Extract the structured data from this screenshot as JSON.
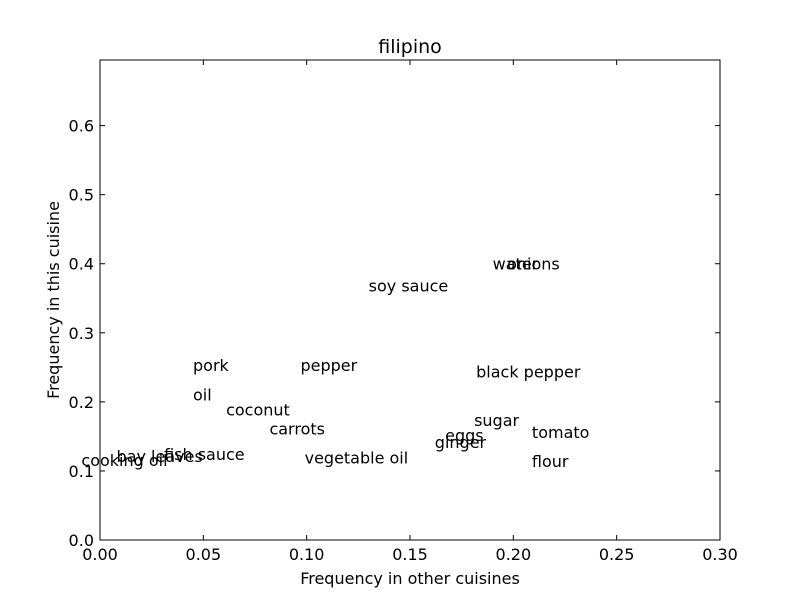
{
  "chart_data": {
    "type": "scatter",
    "title": "filipino",
    "xlabel": "Frequency in other cuisines",
    "ylabel": "Frequency in this cuisine",
    "xlim": [
      0.0,
      0.3
    ],
    "ylim": [
      0.0,
      0.695
    ],
    "xticks": [
      0.0,
      0.05,
      0.1,
      0.15,
      0.2,
      0.25,
      0.3
    ],
    "xtick_labels": [
      "0.00",
      "0.05",
      "0.10",
      "0.15",
      "0.20",
      "0.25",
      "0.30"
    ],
    "yticks": [
      0.0,
      0.1,
      0.2,
      0.3,
      0.4,
      0.5,
      0.6
    ],
    "ytick_labels": [
      "0.0",
      "0.1",
      "0.2",
      "0.3",
      "0.4",
      "0.5",
      "0.6"
    ],
    "grid": false,
    "points": [
      {
        "label": "onions",
        "x": 0.197,
        "y": 0.392
      },
      {
        "label": "water",
        "x": 0.19,
        "y": 0.392
      },
      {
        "label": "soy sauce",
        "x": 0.13,
        "y": 0.36
      },
      {
        "label": "pork",
        "x": 0.045,
        "y": 0.245
      },
      {
        "label": "pepper",
        "x": 0.097,
        "y": 0.245
      },
      {
        "label": "black pepper",
        "x": 0.182,
        "y": 0.235
      },
      {
        "label": "oil",
        "x": 0.045,
        "y": 0.202
      },
      {
        "label": "coconut",
        "x": 0.061,
        "y": 0.18
      },
      {
        "label": "carrots",
        "x": 0.082,
        "y": 0.153
      },
      {
        "label": "sugar",
        "x": 0.181,
        "y": 0.165
      },
      {
        "label": "tomato",
        "x": 0.209,
        "y": 0.148
      },
      {
        "label": "eggs",
        "x": 0.167,
        "y": 0.143
      },
      {
        "label": "ginger",
        "x": 0.162,
        "y": 0.133
      },
      {
        "label": "bay leaves",
        "x": 0.008,
        "y": 0.113
      },
      {
        "label": "fish sauce",
        "x": 0.031,
        "y": 0.116
      },
      {
        "label": "cooking oil",
        "x": -0.009,
        "y": 0.107
      },
      {
        "label": "vegetable oil",
        "x": 0.099,
        "y": 0.111
      },
      {
        "label": "flour",
        "x": 0.209,
        "y": 0.106
      }
    ]
  }
}
